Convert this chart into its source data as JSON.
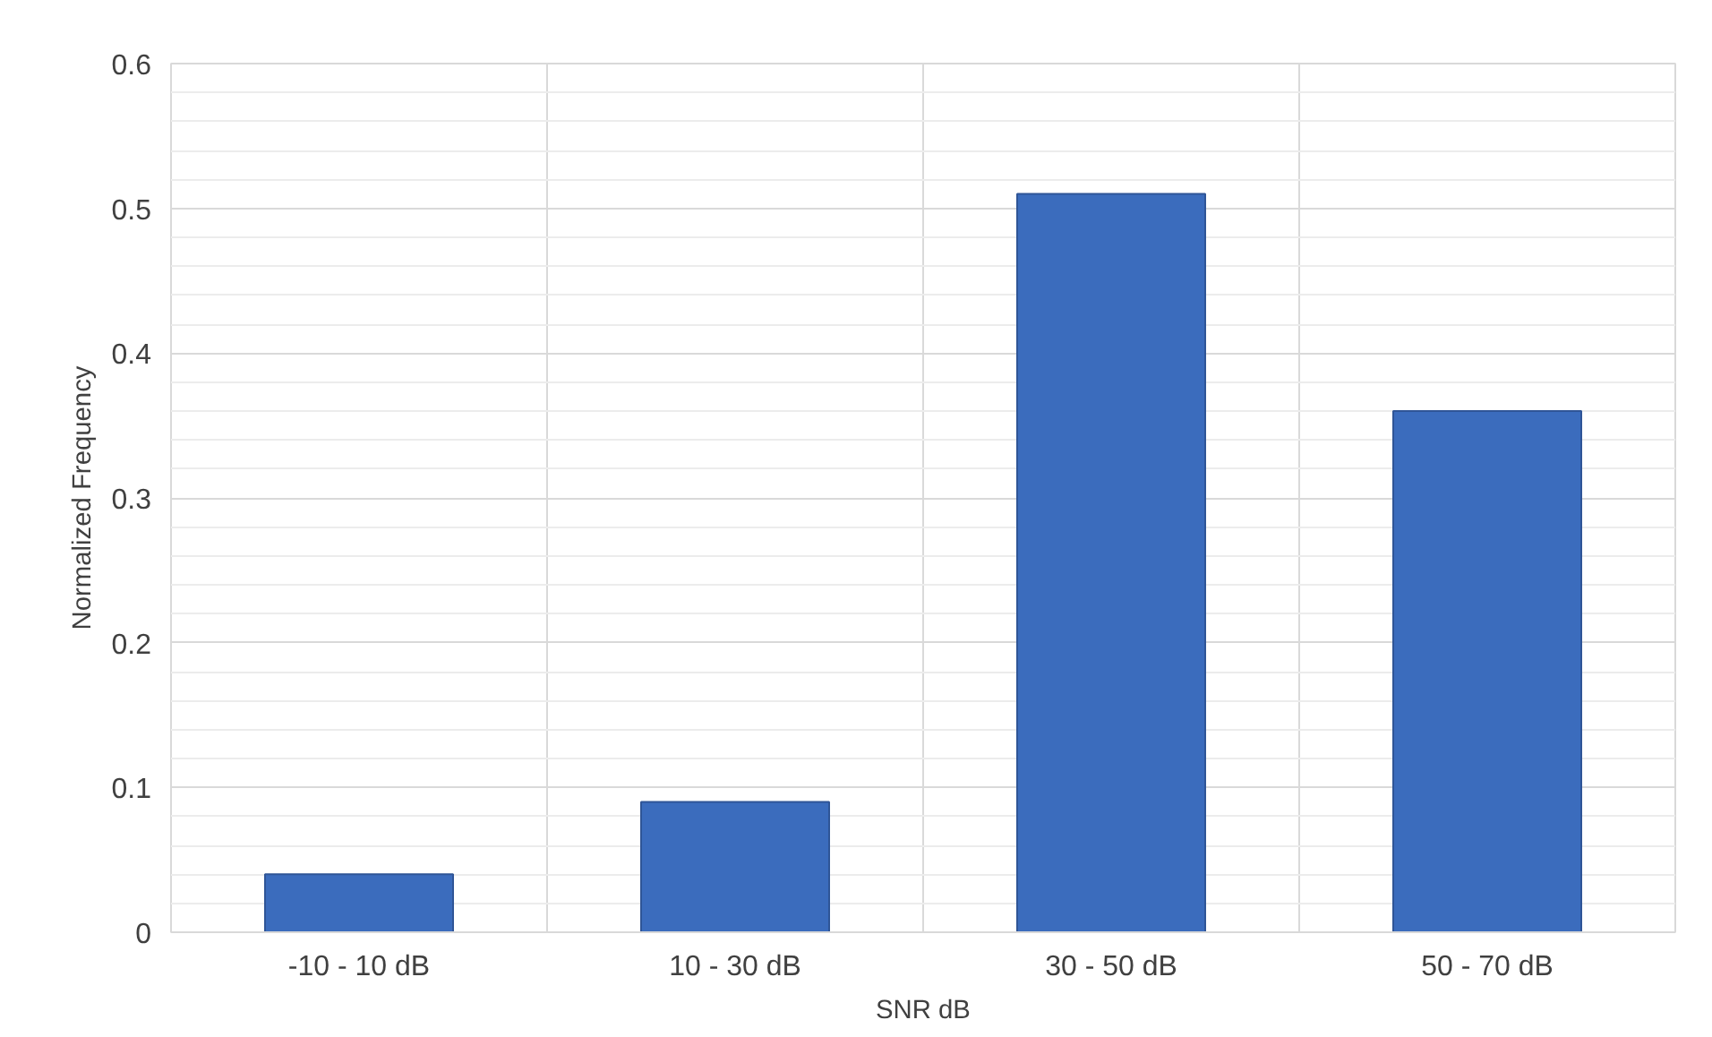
{
  "chart_data": {
    "type": "bar",
    "xlabel": "SNR dB",
    "ylabel": "Normalized Frequency",
    "categories": [
      "-10 - 10 dB",
      "10 - 30 dB",
      "30 - 50 dB",
      "50 - 70 dB"
    ],
    "values": [
      0.04,
      0.09,
      0.51,
      0.36
    ],
    "color": "#3b6cbd",
    "ylim": [
      0,
      0.6
    ],
    "yticks": [
      0,
      0.1,
      0.2,
      0.3,
      0.4,
      0.5,
      0.6
    ],
    "grid": true
  }
}
